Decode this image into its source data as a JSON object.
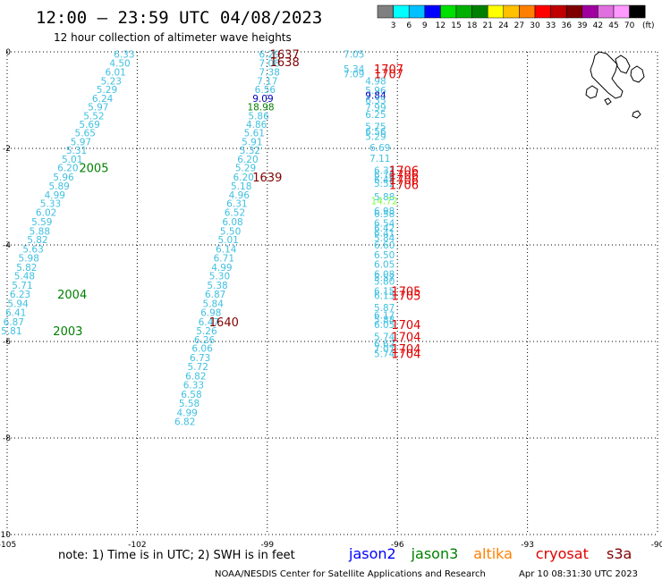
{
  "header": {
    "title": "12:00 — 23:59 UTC 04/08/2023",
    "subtitle": "12 hour collection of altimeter wave heights"
  },
  "legend": {
    "labels": [
      "3",
      "6",
      "9",
      "12",
      "15",
      "18",
      "21",
      "24",
      "27",
      "30",
      "33",
      "36",
      "39",
      "42",
      "45",
      "70"
    ],
    "unit": "(ft)",
    "colors": [
      "#808080",
      "#00ffff",
      "#00c0ff",
      "#0000ff",
      "#00e000",
      "#00b000",
      "#008000",
      "#ffff00",
      "#ffc000",
      "#ff8000",
      "#ff0000",
      "#c00000",
      "#800000",
      "#a000a0",
      "#e070e0",
      "#ff99ff",
      "#000000"
    ]
  },
  "footer": {
    "note": "note: 1) Time is in UTC; 2) SWH is in feet",
    "missions": [
      {
        "name": "jason2",
        "color": "#0000ff"
      },
      {
        "name": "jason3",
        "color": "#008000"
      },
      {
        "name": "altika",
        "color": "#ff8000"
      },
      {
        "name": "cryosat",
        "color": "#e00000"
      },
      {
        "name": "s3a",
        "color": "#800000"
      }
    ],
    "credit": "NOAA/NESDIS Center for Satellite Applications and Research",
    "timestamp": "Apr 10 08:31:30 UTC 2023"
  },
  "chart_data": {
    "type": "scatter",
    "title": "12 hour collection of altimeter wave heights",
    "x_ticks": [
      "-105",
      "-102",
      "-99",
      "-96",
      "-93",
      "-90"
    ],
    "y_ticks": [
      "0",
      "-2",
      "-4",
      "-6",
      "-8",
      "-10"
    ],
    "xlim": [
      -105,
      -90
    ],
    "ylim": [
      -10,
      0
    ],
    "grid": true,
    "series": [
      {
        "name": "track 1",
        "color": "#40c0e0",
        "points": [
          [
            -102.3,
            -0.05,
            "6.33"
          ],
          [
            -102.4,
            -0.23,
            "4.50"
          ],
          [
            -102.5,
            -0.42,
            "6.01"
          ],
          [
            -102.6,
            -0.6,
            "5.23"
          ],
          [
            -102.7,
            -0.78,
            "5.29"
          ],
          [
            -102.8,
            -0.96,
            "6.24"
          ],
          [
            -102.9,
            -1.14,
            "5.97"
          ],
          [
            -103.0,
            -1.32,
            "5.52"
          ],
          [
            -103.1,
            -1.5,
            "5.69"
          ],
          [
            -103.2,
            -1.68,
            "5.65"
          ],
          [
            -103.3,
            -1.86,
            "5.97"
          ],
          [
            -103.4,
            -2.04,
            "5.31"
          ],
          [
            -103.5,
            -2.22,
            "5.01"
          ],
          [
            -103.6,
            -2.4,
            "6.20"
          ],
          [
            -103.7,
            -2.59,
            "5.96"
          ],
          [
            -103.8,
            -2.78,
            "5.89"
          ],
          [
            -103.9,
            -2.96,
            "4.99"
          ],
          [
            -104.0,
            -3.14,
            "5.33"
          ],
          [
            -104.1,
            -3.32,
            "6.02"
          ],
          [
            -104.2,
            -3.52,
            "5.59"
          ],
          [
            -104.25,
            -3.71,
            "5.88"
          ],
          [
            -104.3,
            -3.89,
            "5.82"
          ],
          [
            -104.4,
            -4.08,
            "5.63"
          ],
          [
            -104.5,
            -4.27,
            "5.98"
          ],
          [
            -104.55,
            -4.46,
            "5.82"
          ],
          [
            -104.6,
            -4.64,
            "5.48"
          ],
          [
            -104.65,
            -4.83,
            "5.71"
          ],
          [
            -104.7,
            -5.02,
            "6.23"
          ],
          [
            -104.75,
            -5.21,
            "5.94"
          ],
          [
            -104.8,
            -5.4,
            "6.41"
          ],
          [
            -104.85,
            -5.59,
            "6.87"
          ],
          [
            -104.9,
            -5.78,
            "5.81"
          ]
        ]
      },
      {
        "name": "track 2",
        "color": "#40c0e0",
        "points": [
          [
            -98.95,
            -0.05,
            "6.29"
          ],
          [
            -98.95,
            -0.23,
            "7.08"
          ],
          [
            -98.95,
            -0.42,
            "7.38"
          ],
          [
            -99.0,
            -0.6,
            "7.17"
          ],
          [
            -99.05,
            -0.78,
            "6.56"
          ],
          [
            -99.1,
            -0.96,
            "9.09"
          ],
          [
            -99.15,
            -1.14,
            "18.98"
          ],
          [
            -99.2,
            -1.32,
            "5.86"
          ],
          [
            -99.25,
            -1.5,
            "4.86"
          ],
          [
            -99.3,
            -1.68,
            "5.61"
          ],
          [
            -99.35,
            -1.86,
            "5.91"
          ],
          [
            -99.4,
            -2.04,
            "5.32"
          ],
          [
            -99.45,
            -2.22,
            "6.20"
          ],
          [
            -99.5,
            -2.4,
            "5.29"
          ],
          [
            -99.55,
            -2.59,
            "6.20"
          ],
          [
            -99.6,
            -2.78,
            "5.18"
          ],
          [
            -99.65,
            -2.96,
            "4.96"
          ],
          [
            -99.7,
            -3.14,
            "6.31"
          ],
          [
            -99.75,
            -3.32,
            "6.52"
          ],
          [
            -99.8,
            -3.52,
            "6.08"
          ],
          [
            -99.85,
            -3.71,
            "5.50"
          ],
          [
            -99.9,
            -3.89,
            "5.01"
          ],
          [
            -99.95,
            -4.08,
            "6.14"
          ],
          [
            -100.0,
            -4.27,
            "6.71"
          ],
          [
            -100.05,
            -4.46,
            "4.99"
          ],
          [
            -100.1,
            -4.64,
            "5.30"
          ],
          [
            -100.15,
            -4.83,
            "5.38"
          ],
          [
            -100.2,
            -5.02,
            "6.87"
          ],
          [
            -100.25,
            -5.21,
            "5.84"
          ],
          [
            -100.3,
            -5.4,
            "6.98"
          ],
          [
            -100.35,
            -5.59,
            "6.47"
          ],
          [
            -100.4,
            -5.78,
            "5.26"
          ],
          [
            -100.45,
            -5.96,
            "6.26"
          ],
          [
            -100.5,
            -6.14,
            "6.06"
          ],
          [
            -100.55,
            -6.33,
            "6.73"
          ],
          [
            -100.6,
            -6.52,
            "5.72"
          ],
          [
            -100.65,
            -6.71,
            "6.82"
          ],
          [
            -100.7,
            -6.9,
            "6.33"
          ],
          [
            -100.75,
            -7.09,
            "6.58"
          ],
          [
            -100.8,
            -7.28,
            "5.58"
          ],
          [
            -100.85,
            -7.47,
            "4.99"
          ],
          [
            -100.9,
            -7.66,
            "6.82"
          ]
        ]
      },
      {
        "name": "track 3",
        "color": "#40c0e0",
        "points": [
          [
            -97.0,
            -0.05,
            "7.05"
          ],
          [
            -97.0,
            -0.35,
            "5.34"
          ],
          [
            -97.0,
            -0.45,
            "7.09"
          ],
          [
            -96.5,
            -0.6,
            "4.98"
          ],
          [
            -96.5,
            -0.8,
            "5.96"
          ],
          [
            -96.5,
            -0.9,
            "9.84"
          ],
          [
            -96.5,
            -1.0,
            "6.35"
          ],
          [
            -96.5,
            -1.15,
            "7.99"
          ],
          [
            -96.5,
            -1.3,
            "6.25"
          ],
          [
            -96.5,
            -1.55,
            "5.75"
          ],
          [
            -96.5,
            -1.65,
            "6.56"
          ],
          [
            -96.5,
            -1.75,
            "5.29"
          ],
          [
            -96.4,
            -1.98,
            "6.69"
          ],
          [
            -96.4,
            -2.2,
            "7.11"
          ],
          [
            -96.3,
            -2.45,
            "6.31"
          ],
          [
            -96.3,
            -2.55,
            "6.76"
          ],
          [
            -96.3,
            -2.65,
            "6.48"
          ],
          [
            -96.3,
            -2.72,
            "5.52"
          ],
          [
            -96.3,
            -3.0,
            "5.88"
          ],
          [
            -96.3,
            -3.08,
            "14.72"
          ],
          [
            -96.3,
            -3.3,
            "6.98"
          ],
          [
            -96.3,
            -3.35,
            "6.58"
          ],
          [
            -96.3,
            -3.55,
            "6.54"
          ],
          [
            -96.3,
            -3.65,
            "6.42"
          ],
          [
            -96.3,
            -3.75,
            "6.41"
          ],
          [
            -96.3,
            -3.85,
            "5.84"
          ],
          [
            -96.3,
            -4.0,
            "6.60"
          ],
          [
            -96.3,
            -4.2,
            "6.50"
          ],
          [
            -96.3,
            -4.4,
            "6.05"
          ],
          [
            -96.3,
            -4.6,
            "6.08"
          ],
          [
            -96.3,
            -4.68,
            "5.57"
          ],
          [
            -96.3,
            -4.75,
            "5.80"
          ],
          [
            -96.3,
            -4.95,
            "6.15"
          ],
          [
            -96.3,
            -5.05,
            "6.15"
          ],
          [
            -96.3,
            -5.3,
            "5.87"
          ],
          [
            -96.3,
            -5.45,
            "6.17"
          ],
          [
            -96.3,
            -5.55,
            "5.88"
          ],
          [
            -96.3,
            -5.65,
            "6.05"
          ],
          [
            -96.3,
            -5.9,
            "5.74"
          ],
          [
            -96.3,
            -6.05,
            "6.62"
          ],
          [
            -96.3,
            -6.15,
            "7.07"
          ],
          [
            -96.3,
            -6.25,
            "5.74"
          ]
        ]
      }
    ],
    "time_labels": [
      {
        "text": "2005",
        "x": -103.0,
        "y": -2.4,
        "color": "#008000"
      },
      {
        "text": "2004",
        "x": -103.5,
        "y": -5.02,
        "color": "#008000"
      },
      {
        "text": "2003",
        "x": -103.6,
        "y": -5.78,
        "color": "#008000"
      },
      {
        "text": "1637",
        "x": -98.6,
        "y": -0.05,
        "color": "#800000"
      },
      {
        "text": "1638",
        "x": -98.6,
        "y": -0.2,
        "color": "#800000"
      },
      {
        "text": "1639",
        "x": -99.0,
        "y": -2.59,
        "color": "#800000"
      },
      {
        "text": "1640",
        "x": -100.0,
        "y": -5.59,
        "color": "#800000"
      },
      {
        "text": "1707",
        "x": -96.2,
        "y": -0.35,
        "color": "#e00000"
      },
      {
        "text": "1707",
        "x": -96.2,
        "y": -0.45,
        "color": "#e00000"
      },
      {
        "text": "1706",
        "x": -95.85,
        "y": -2.45,
        "color": "#e00000"
      },
      {
        "text": "1706",
        "x": -95.85,
        "y": -2.55,
        "color": "#e00000"
      },
      {
        "text": "1706",
        "x": -95.85,
        "y": -2.65,
        "color": "#e00000"
      },
      {
        "text": "1706",
        "x": -95.85,
        "y": -2.75,
        "color": "#e00000"
      },
      {
        "text": "1705",
        "x": -95.8,
        "y": -4.95,
        "color": "#e00000"
      },
      {
        "text": "1705",
        "x": -95.8,
        "y": -5.05,
        "color": "#e00000"
      },
      {
        "text": "1704",
        "x": -95.8,
        "y": -5.65,
        "color": "#e00000"
      },
      {
        "text": "1704",
        "x": -95.8,
        "y": -5.9,
        "color": "#e00000"
      },
      {
        "text": "1704",
        "x": -95.8,
        "y": -6.15,
        "color": "#e00000"
      },
      {
        "text": "1704",
        "x": -95.8,
        "y": -6.25,
        "color": "#e00000"
      }
    ]
  }
}
